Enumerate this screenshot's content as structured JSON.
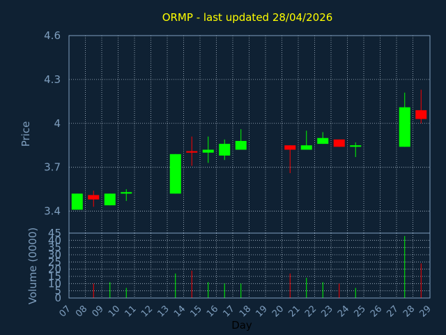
{
  "chart_data": {
    "type": "candlestick",
    "title": "ORMP - last updated 28/04/2026",
    "price_panel": {
      "ylabel": "Price",
      "ylim": [
        3.25,
        4.6
      ],
      "yticks": [
        "4.6",
        "4.3",
        "4",
        "3.7",
        "3.4"
      ],
      "ytick_values": [
        4.6,
        4.3,
        4.0,
        3.7,
        3.4
      ],
      "grid": true
    },
    "volume_panel": {
      "ylabel": "Volume (0000)",
      "ylim": [
        0,
        45
      ],
      "yticks": [
        "45",
        "40",
        "35",
        "30",
        "25",
        "20",
        "15",
        "10",
        "5",
        "0"
      ],
      "ytick_values": [
        45,
        40,
        35,
        30,
        25,
        20,
        15,
        10,
        5,
        0
      ],
      "grid": true
    },
    "xlabel": "Day",
    "xticks": [
      "07",
      "08",
      "09",
      "10",
      "11",
      "12",
      "13",
      "14",
      "15",
      "16",
      "17",
      "18",
      "19",
      "20",
      "21",
      "22",
      "23",
      "24",
      "25",
      "26",
      "27",
      "28",
      "29"
    ],
    "up_color": "#00ff00",
    "down_color": "#ff0000",
    "candles": [
      {
        "day": "07",
        "open": 3.41,
        "high": 3.52,
        "low": 3.41,
        "close": 3.52,
        "volume": 0
      },
      {
        "day": "08",
        "open": 3.51,
        "high": 3.54,
        "low": 3.43,
        "close": 3.48,
        "volume": 10
      },
      {
        "day": "09",
        "open": 3.44,
        "high": 3.52,
        "low": 3.44,
        "close": 3.52,
        "volume": 11
      },
      {
        "day": "10",
        "open": 3.52,
        "high": 3.55,
        "low": 3.47,
        "close": 3.53,
        "volume": 7
      },
      {
        "day": "13",
        "open": 3.52,
        "high": 3.79,
        "low": 3.52,
        "close": 3.79,
        "volume": 17
      },
      {
        "day": "14",
        "open": 3.81,
        "high": 3.91,
        "low": 3.71,
        "close": 3.8,
        "volume": 19
      },
      {
        "day": "15",
        "open": 3.8,
        "high": 3.91,
        "low": 3.73,
        "close": 3.82,
        "volume": 11
      },
      {
        "day": "16",
        "open": 3.78,
        "high": 3.89,
        "low": 3.75,
        "close": 3.86,
        "volume": 10
      },
      {
        "day": "17",
        "open": 3.82,
        "high": 3.96,
        "low": 3.82,
        "close": 3.88,
        "volume": 10
      },
      {
        "day": "20",
        "open": 3.85,
        "high": 3.85,
        "low": 3.66,
        "close": 3.82,
        "volume": 17
      },
      {
        "day": "21",
        "open": 3.82,
        "high": 3.95,
        "low": 3.82,
        "close": 3.85,
        "volume": 14
      },
      {
        "day": "22",
        "open": 3.86,
        "high": 3.94,
        "low": 3.86,
        "close": 3.9,
        "volume": 11
      },
      {
        "day": "23",
        "open": 3.89,
        "high": 3.89,
        "low": 3.84,
        "close": 3.84,
        "volume": 10
      },
      {
        "day": "24",
        "open": 3.84,
        "high": 3.87,
        "low": 3.77,
        "close": 3.85,
        "volume": 7
      },
      {
        "day": "27",
        "open": 3.84,
        "high": 4.21,
        "low": 3.84,
        "close": 4.11,
        "volume": 43
      },
      {
        "day": "28",
        "open": 4.09,
        "high": 4.23,
        "low": 4.0,
        "close": 4.03,
        "volume": 24
      }
    ]
  }
}
